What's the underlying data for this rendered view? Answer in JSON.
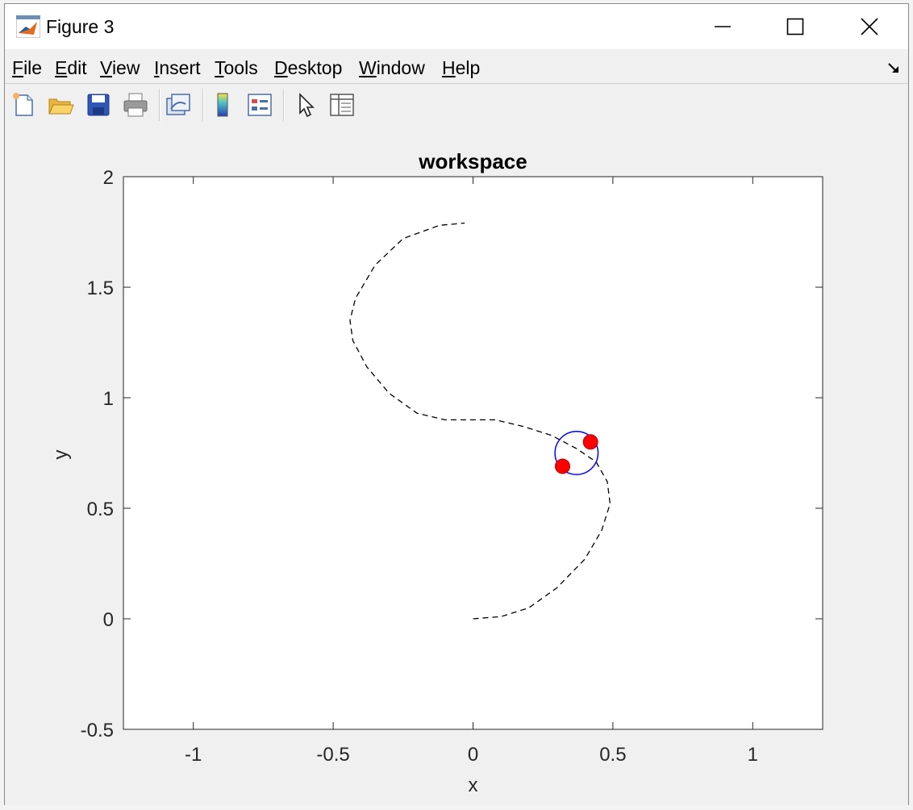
{
  "window": {
    "title": "Figure 3",
    "controls": {
      "minimize": "minimize",
      "maximize": "maximize",
      "close": "close"
    }
  },
  "menu": {
    "items": [
      {
        "label": "File",
        "accel": "F",
        "rest": "ile"
      },
      {
        "label": "Edit",
        "accel": "E",
        "rest": "dit"
      },
      {
        "label": "View",
        "accel": "V",
        "rest": "iew"
      },
      {
        "label": "Insert",
        "accel": "I",
        "rest": "nsert"
      },
      {
        "label": "Tools",
        "accel": "T",
        "rest": "ools"
      },
      {
        "label": "Desktop",
        "accel": "D",
        "rest": "esktop"
      },
      {
        "label": "Window",
        "accel": "W",
        "rest": "indow"
      },
      {
        "label": "Help",
        "accel": "H",
        "rest": "elp"
      }
    ]
  },
  "toolbar": {
    "tools": [
      "new-figure-icon",
      "open-file-icon",
      "save-icon",
      "print-icon",
      "link-plot-icon",
      "colorbar-icon",
      "legend-icon",
      "pointer-icon",
      "property-inspector-icon"
    ]
  },
  "colors": {
    "circle": "#0000ff",
    "markers": "#ff0000",
    "path": "#000000"
  },
  "chart_data": {
    "type": "line",
    "title": "workspace",
    "xlabel": "x",
    "ylabel": "y",
    "xlim": [
      -1.25,
      1.25
    ],
    "ylim": [
      -0.5,
      2
    ],
    "xticks": [
      -1,
      -0.5,
      0,
      0.5,
      1
    ],
    "yticks": [
      -0.5,
      0,
      0.5,
      1,
      1.5,
      2
    ],
    "xtick_labels": [
      "-1",
      "-0.5",
      "0",
      "0.5",
      "1"
    ],
    "ytick_labels": [
      "-0.5",
      "0",
      "0.5",
      "1",
      "1.5",
      "2"
    ],
    "grid": false,
    "series": [
      {
        "style": "dashed",
        "color": "#000000",
        "x": [
          0.0,
          0.1,
          0.2,
          0.3,
          0.4,
          0.46,
          0.49,
          0.48,
          0.44,
          0.37,
          0.28,
          0.18,
          0.08,
          0.0,
          -0.1,
          -0.2,
          -0.3,
          -0.38,
          -0.43,
          -0.44,
          -0.42,
          -0.35,
          -0.25,
          -0.12,
          -0.03
        ],
        "y": [
          0.0,
          0.01,
          0.05,
          0.14,
          0.27,
          0.4,
          0.52,
          0.62,
          0.71,
          0.77,
          0.83,
          0.87,
          0.9,
          0.9,
          0.9,
          0.93,
          1.02,
          1.14,
          1.26,
          1.35,
          1.45,
          1.6,
          1.72,
          1.78,
          1.79
        ]
      }
    ],
    "circle": {
      "cx": 0.37,
      "cy": 0.75,
      "r": 0.077,
      "color": "#0000ff"
    },
    "markers": [
      {
        "x": 0.32,
        "y": 0.69,
        "color": "#ff0000"
      },
      {
        "x": 0.42,
        "y": 0.8,
        "color": "#ff0000"
      }
    ]
  }
}
